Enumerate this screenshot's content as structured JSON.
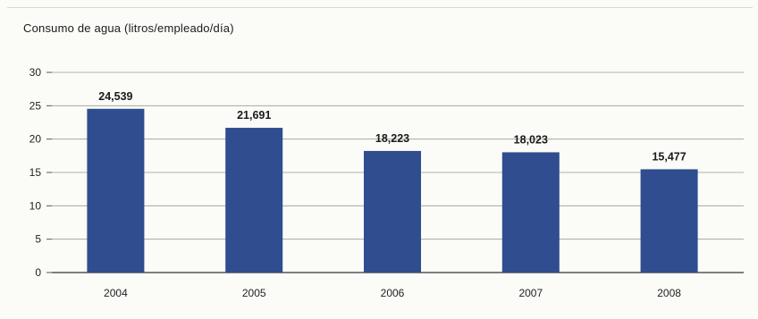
{
  "chart_data": {
    "type": "bar",
    "title": "Consumo de agua (litros/empleado/día)",
    "xlabel": "",
    "ylabel": "",
    "categories": [
      "2004",
      "2005",
      "2006",
      "2007",
      "2008"
    ],
    "values": [
      24.539,
      21.691,
      18.223,
      18.023,
      15.477
    ],
    "data_labels": [
      "24,539",
      "21,691",
      "18,223",
      "18,023",
      "15,477"
    ],
    "yticks": [
      "0",
      "5",
      "10",
      "15",
      "20",
      "25",
      "30"
    ],
    "ylim": [
      0,
      30
    ],
    "grid": true,
    "legend": "none",
    "bar_color": "#2f4d8f"
  }
}
